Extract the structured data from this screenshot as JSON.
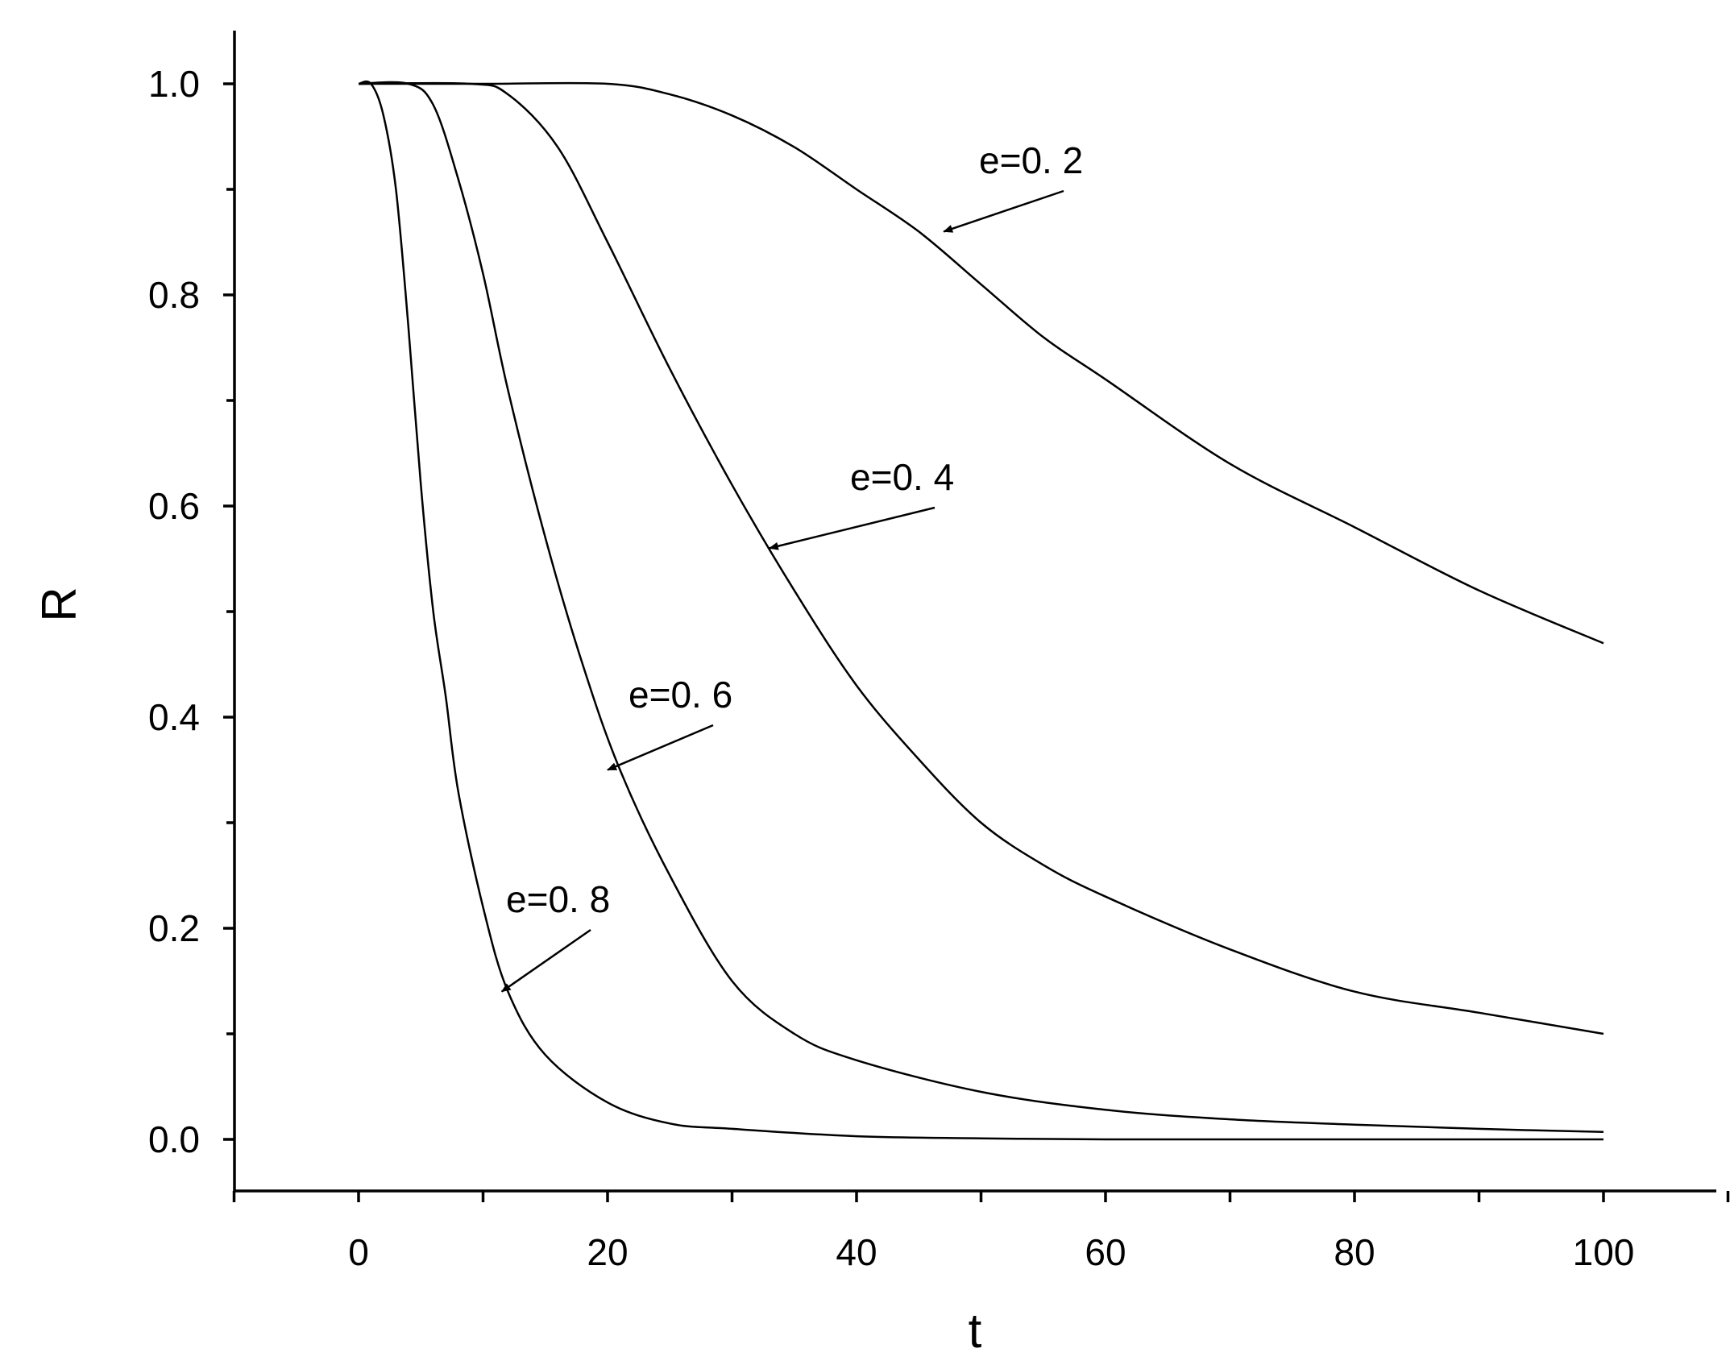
{
  "chart_data": {
    "type": "line",
    "title": "",
    "xlabel": "t",
    "ylabel": "R",
    "xlim": [
      -10,
      110
    ],
    "ylim": [
      -0.05,
      1.05
    ],
    "x_ticks": [
      0,
      20,
      40,
      60,
      80,
      100
    ],
    "x_tick_labels": [
      "0",
      "20",
      "40",
      "60",
      "80",
      "100"
    ],
    "y_ticks": [
      0.0,
      0.2,
      0.4,
      0.6,
      0.8,
      1.0
    ],
    "y_tick_labels": [
      "0.0",
      "0.2",
      "0.4",
      "0.6",
      "0.8",
      "1.0"
    ],
    "grid": false,
    "legend": "none",
    "colors": {
      "line": "#000000",
      "axis": "#000000",
      "background": "#ffffff"
    },
    "series": [
      {
        "label": "e=0. 2",
        "x": [
          0,
          10,
          20,
          25,
          30,
          35,
          40,
          45,
          50,
          55,
          60,
          70,
          80,
          90,
          100
        ],
        "y": [
          1.0,
          1.0,
          1.0,
          0.99,
          0.97,
          0.94,
          0.9,
          0.86,
          0.81,
          0.76,
          0.72,
          0.64,
          0.58,
          0.52,
          0.47
        ]
      },
      {
        "label": "e=0. 4",
        "x": [
          0,
          9,
          12,
          16,
          20,
          25,
          30,
          35,
          40,
          45,
          50,
          55,
          60,
          70,
          80,
          90,
          100
        ],
        "y": [
          1.0,
          1.0,
          0.99,
          0.94,
          0.85,
          0.73,
          0.62,
          0.52,
          0.43,
          0.36,
          0.3,
          0.26,
          0.23,
          0.18,
          0.14,
          0.12,
          0.1
        ]
      },
      {
        "label": "e=0. 6",
        "x": [
          0,
          4,
          6,
          8,
          10,
          12,
          15,
          18,
          21,
          25,
          30,
          35,
          40,
          50,
          60,
          70,
          80,
          90,
          100
        ],
        "y": [
          1.0,
          1.0,
          0.98,
          0.91,
          0.82,
          0.71,
          0.57,
          0.45,
          0.35,
          0.25,
          0.15,
          0.1,
          0.075,
          0.045,
          0.028,
          0.019,
          0.014,
          0.01,
          0.007
        ]
      },
      {
        "label": "e=0. 8",
        "x": [
          0,
          1,
          2,
          3,
          4,
          5,
          6,
          7,
          8,
          10,
          12,
          15,
          20,
          25,
          30,
          40,
          50,
          60,
          80,
          100
        ],
        "y": [
          1.0,
          1.0,
          0.97,
          0.9,
          0.77,
          0.62,
          0.5,
          0.42,
          0.33,
          0.22,
          0.14,
          0.08,
          0.035,
          0.015,
          0.01,
          0.003,
          0.001,
          0.0,
          0.0,
          0.0
        ]
      }
    ],
    "annotations": [
      {
        "text": "e=0. 2",
        "target": [
          47,
          0.86
        ]
      },
      {
        "text": "e=0. 4",
        "target": [
          33,
          0.56
        ]
      },
      {
        "text": "e=0. 6",
        "target": [
          20,
          0.35
        ]
      },
      {
        "text": "e=0. 8",
        "target": [
          11.5,
          0.14
        ]
      }
    ]
  }
}
